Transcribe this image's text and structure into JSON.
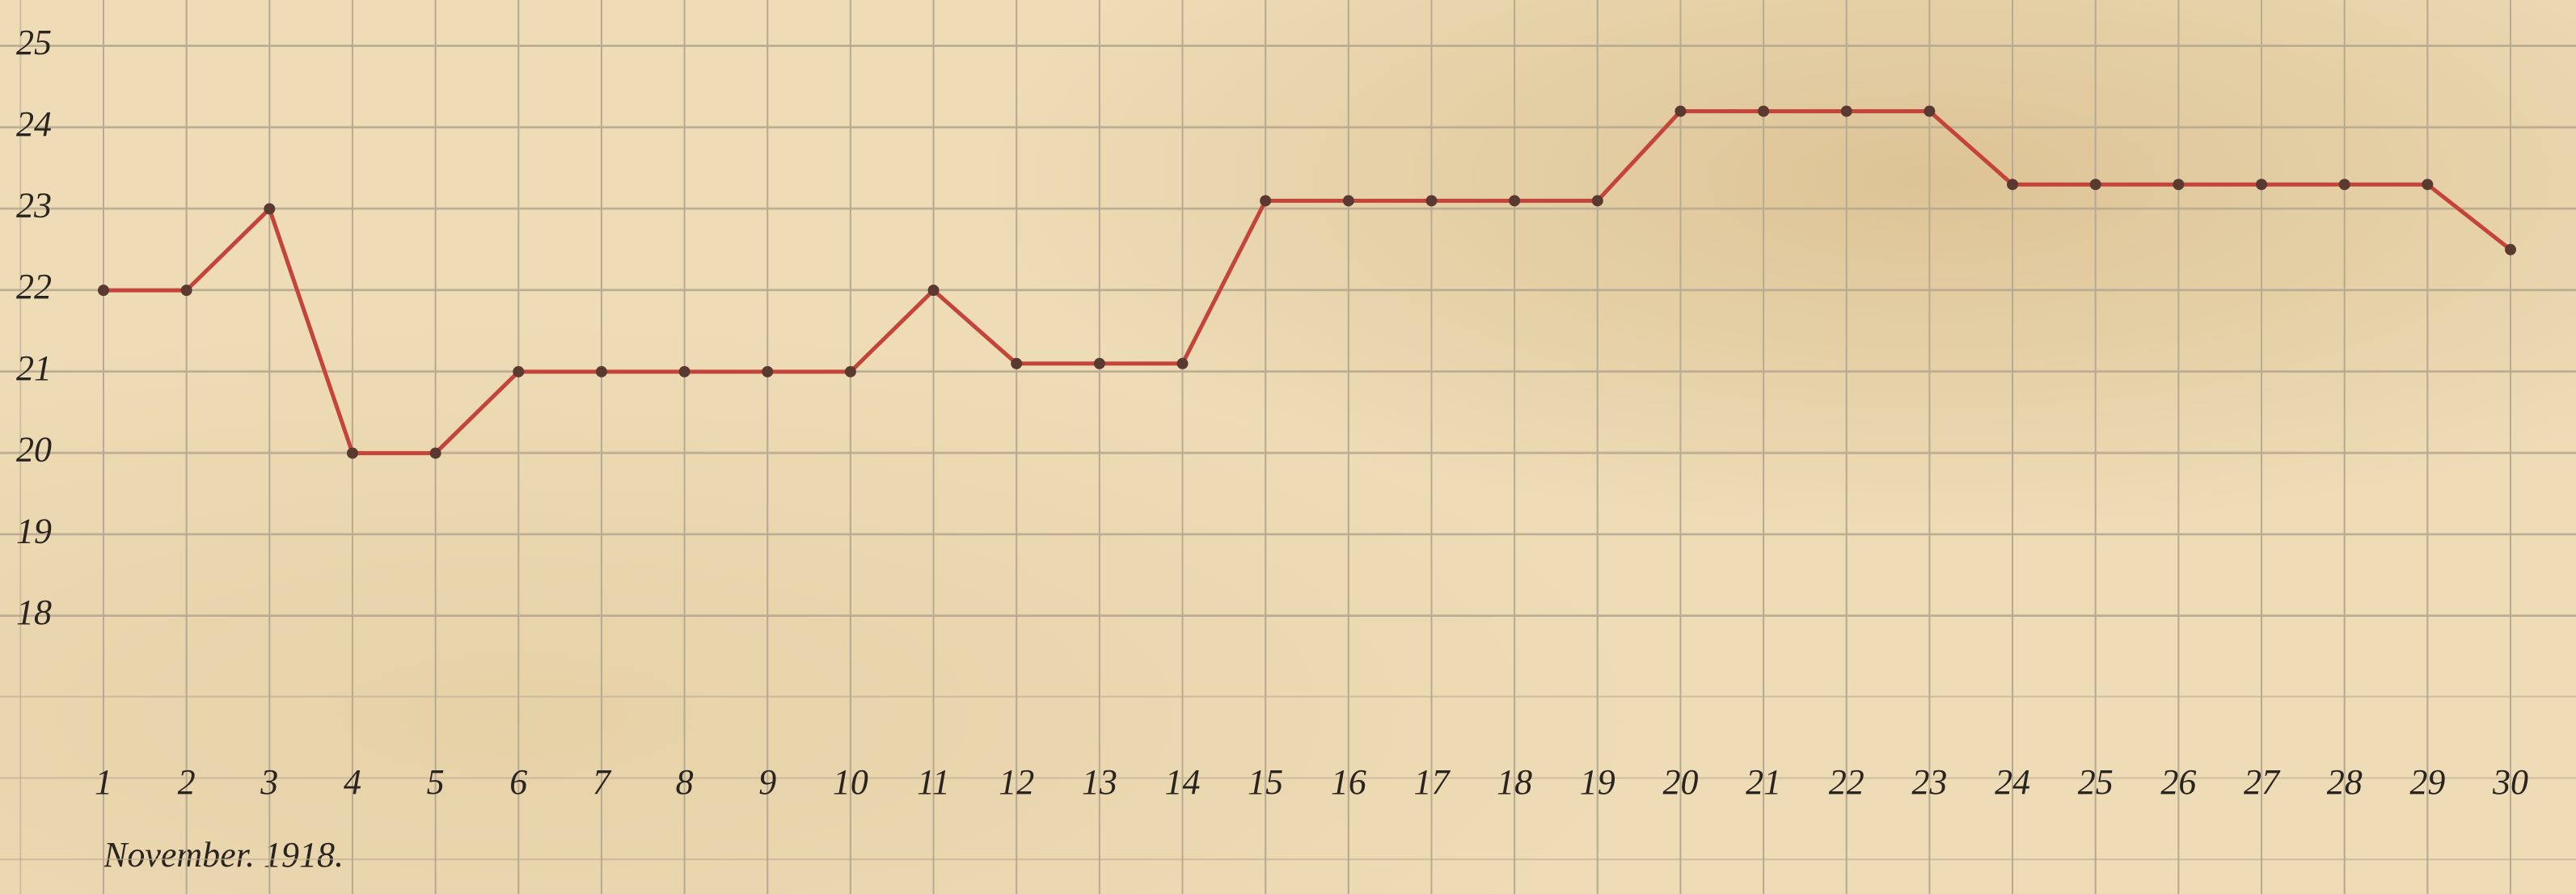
{
  "chart_data": {
    "type": "line",
    "x_label": "November. 1918.",
    "x": [
      1,
      2,
      3,
      4,
      5,
      6,
      7,
      8,
      9,
      10,
      11,
      12,
      13,
      14,
      15,
      16,
      17,
      18,
      19,
      20,
      21,
      22,
      23,
      24,
      25,
      26,
      27,
      28,
      29,
      30
    ],
    "series": [
      {
        "color": "#c4433a",
        "values": [
          22,
          22,
          23,
          20,
          20,
          21,
          21,
          21,
          21,
          21,
          22,
          21.1,
          21.1,
          21.1,
          23.1,
          23.1,
          23.1,
          23.1,
          23.1,
          24.2,
          24.2,
          24.2,
          24.2,
          23.3,
          23.3,
          23.3,
          23.3,
          23.3,
          23.3,
          22.5
        ]
      }
    ],
    "xlim": [
      1,
      30
    ],
    "xticks": [
      1,
      2,
      3,
      4,
      5,
      6,
      7,
      8,
      9,
      10,
      11,
      12,
      13,
      14,
      15,
      16,
      17,
      18,
      19,
      20,
      21,
      22,
      23,
      24,
      25,
      26,
      27,
      28,
      29,
      30
    ],
    "ylim": [
      18,
      25
    ],
    "yticks": [
      18,
      19,
      20,
      21,
      22,
      23,
      24,
      25
    ],
    "grid": true
  }
}
